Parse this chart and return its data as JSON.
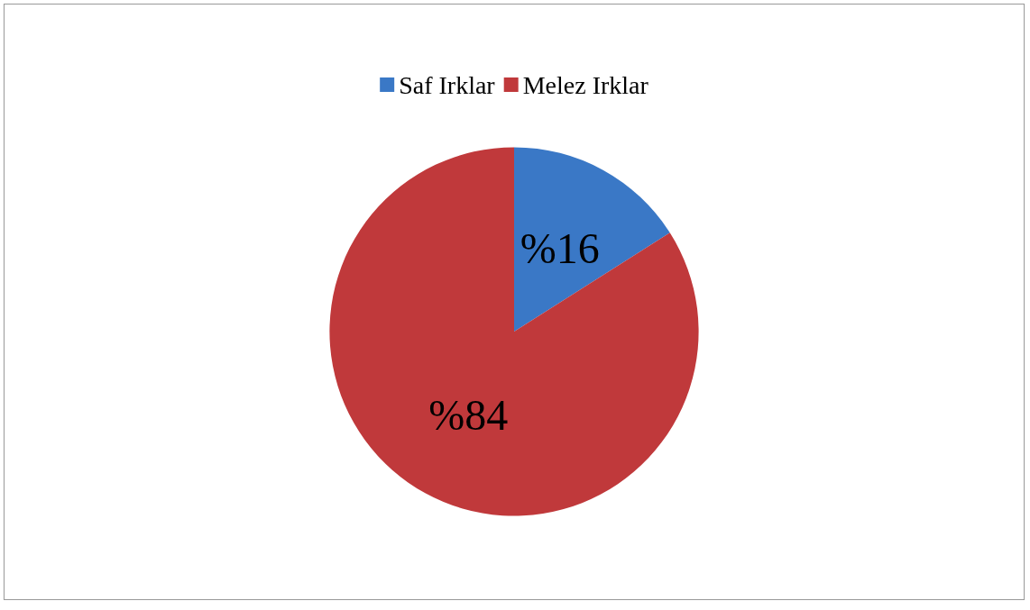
{
  "chart_data": {
    "type": "pie",
    "categories": [
      "Saf Irklar",
      "Melez Irklar"
    ],
    "values": [
      16,
      84
    ],
    "colors": [
      "#3a78c6",
      "#c0393b"
    ],
    "value_labels": [
      "%16",
      "%84"
    ],
    "legend": "top"
  }
}
